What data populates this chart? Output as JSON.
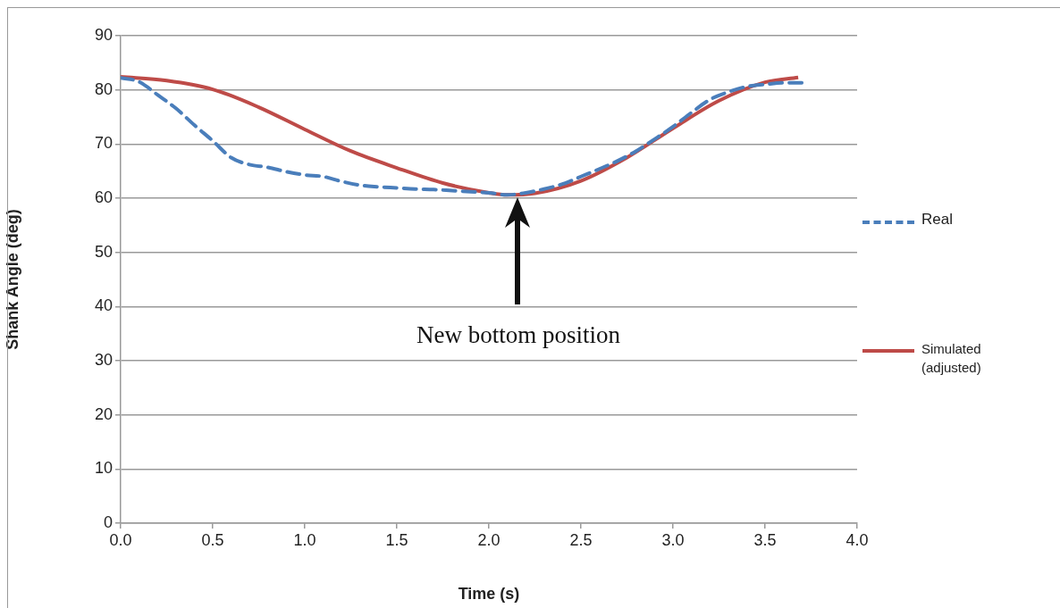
{
  "chart_data": {
    "type": "line",
    "xlabel": "Time (s)",
    "ylabel": "Shank Angle (deg)",
    "xlim": [
      0,
      4
    ],
    "xticks": [
      {
        "value": 0,
        "label": "0.0"
      },
      {
        "value": 0.5,
        "label": "0.5"
      },
      {
        "value": 1,
        "label": "1.0"
      },
      {
        "value": 1.5,
        "label": "1.5"
      },
      {
        "value": 2,
        "label": "2.0"
      },
      {
        "value": 2.5,
        "label": "2.5"
      },
      {
        "value": 3,
        "label": "3.0"
      },
      {
        "value": 3.5,
        "label": "3.5"
      },
      {
        "value": 4,
        "label": "4.0"
      }
    ],
    "ylim": [
      0,
      90
    ],
    "yticks": [
      0,
      10,
      20,
      30,
      40,
      50,
      60,
      70,
      80,
      90
    ],
    "grid": "y",
    "legend": "right",
    "marker": "none",
    "series": [
      {
        "name": "Real",
        "color": "#4a7ebb",
        "line_style": "dashed",
        "x": [
          0,
          0.1,
          0.2,
          0.3,
          0.4,
          0.5,
          0.6,
          0.7,
          0.8,
          0.9,
          1.0,
          1.1,
          1.2,
          1.3,
          1.4,
          1.5,
          1.6,
          1.7,
          1.8,
          1.9,
          2.0,
          2.1,
          2.2,
          2.3,
          2.4,
          2.5,
          2.6,
          2.7,
          2.8,
          2.9,
          3.0,
          3.1,
          3.2,
          3.3,
          3.4,
          3.5,
          3.6,
          3.7
        ],
        "values": [
          82.2,
          81.5,
          79.1,
          76.6,
          73.5,
          70.6,
          67.5,
          66.2,
          65.7,
          64.9,
          64.3,
          64.0,
          63.1,
          62.4,
          62.1,
          61.9,
          61.7,
          61.6,
          61.4,
          61.2,
          61.0,
          60.6,
          61.0,
          61.7,
          62.6,
          64.0,
          65.4,
          66.9,
          68.7,
          70.9,
          73.2,
          75.8,
          78.2,
          79.6,
          80.6,
          81.0,
          81.3,
          81.3
        ]
      },
      {
        "name": "Simulated (adjusted)",
        "color": "#be4b48",
        "line_style": "solid",
        "x": [
          0,
          0.25,
          0.5,
          0.75,
          1.0,
          1.25,
          1.5,
          1.75,
          2.0,
          2.1,
          2.25,
          2.5,
          2.75,
          3.0,
          3.25,
          3.5,
          3.68
        ],
        "values": [
          82.4,
          81.7,
          80.1,
          76.8,
          72.7,
          68.7,
          65.6,
          62.8,
          61.0,
          60.6,
          60.9,
          63.2,
          67.5,
          72.9,
          78.0,
          81.4,
          82.3
        ]
      }
    ],
    "annotations": [
      "New bottom position"
    ]
  }
}
